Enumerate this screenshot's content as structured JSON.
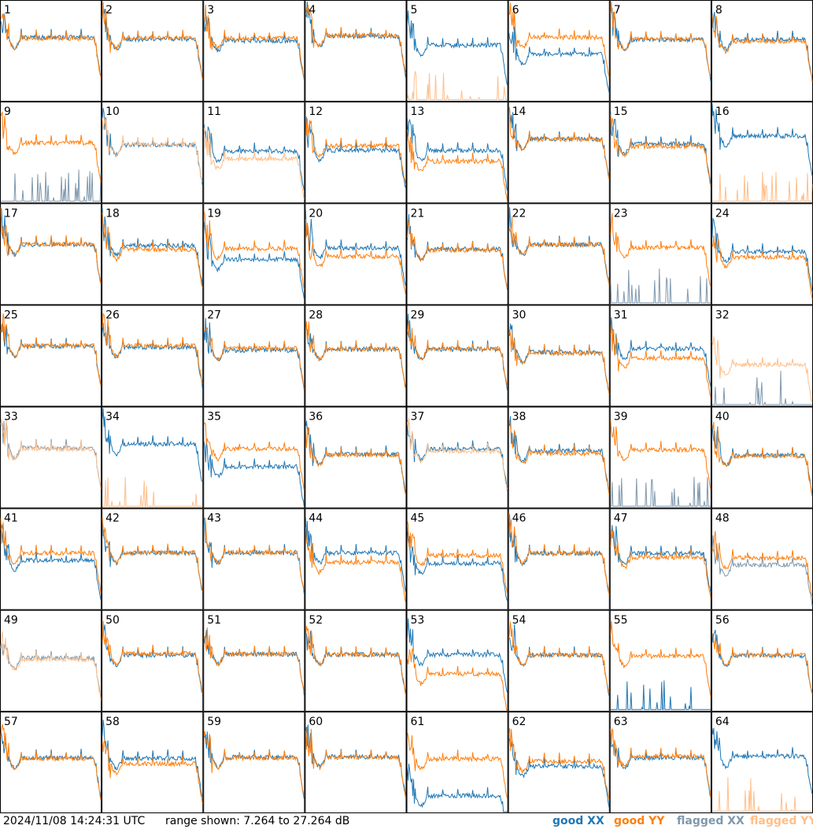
{
  "footer": {
    "timestamp": "2024/11/08 14:24:31 UTC",
    "range": "range shown: 7.264 to 27.264 dB"
  },
  "legend": [
    {
      "label": "good XX",
      "color": "#1f77b4"
    },
    {
      "label": "good YY",
      "color": "#ff7f0e"
    },
    {
      "label": "flagged XX",
      "color": "#7f98ad"
    },
    {
      "label": "flagged YY",
      "color": "#ffbf8a"
    }
  ],
  "chart_data": {
    "type": "line",
    "grid": "8x8 small multiples",
    "ylim": [
      7.264,
      27.264
    ],
    "units": "dB",
    "panels": [
      {
        "label": "1",
        "xx": "good",
        "yy": "good",
        "xx_level": 20.0,
        "yy_level": 19.8
      },
      {
        "label": "2",
        "xx": "good",
        "yy": "good",
        "xx_level": 19.6,
        "yy_level": 19.9
      },
      {
        "label": "3",
        "xx": "good",
        "yy": "good",
        "xx_level": 19.3,
        "yy_level": 19.8
      },
      {
        "label": "4",
        "xx": "good",
        "yy": "good",
        "xx_level": 20.2,
        "yy_level": 20.4
      },
      {
        "label": "5",
        "xx": "good",
        "yy": "flagged",
        "xx_level": 18.4,
        "yy_level": 7.5
      },
      {
        "label": "6",
        "xx": "good",
        "yy": "good",
        "xx_level": 16.6,
        "yy_level": 20.0
      },
      {
        "label": "7",
        "xx": "good",
        "yy": "good",
        "xx_level": 19.5,
        "yy_level": 19.6
      },
      {
        "label": "8",
        "xx": "good",
        "yy": "good",
        "xx_level": 19.6,
        "yy_level": 19.2
      },
      {
        "label": "9",
        "xx": "flagged",
        "yy": "good",
        "xx_level": 8.5,
        "yy_level": 19.2
      },
      {
        "label": "10",
        "xx": "good",
        "yy": "flagged",
        "xx_level": 18.8,
        "yy_level": 18.9
      },
      {
        "label": "11",
        "xx": "good",
        "yy": "flagged",
        "xx_level": 17.5,
        "yy_level": 16.0
      },
      {
        "label": "12",
        "xx": "good",
        "yy": "good",
        "xx_level": 17.7,
        "yy_level": 18.6
      },
      {
        "label": "13",
        "xx": "good",
        "yy": "good",
        "xx_level": 17.7,
        "yy_level": 15.5
      },
      {
        "label": "14",
        "xx": "good",
        "yy": "good",
        "xx_level": 20.0,
        "yy_level": 19.9
      },
      {
        "label": "15",
        "xx": "good",
        "yy": "good",
        "xx_level": 19.0,
        "yy_level": 18.5
      },
      {
        "label": "16",
        "xx": "good",
        "yy": "flagged",
        "xx_level": 20.6,
        "yy_level": 7.4
      },
      {
        "label": "17",
        "xx": "good",
        "yy": "good",
        "xx_level": 19.2,
        "yy_level": 19.3
      },
      {
        "label": "18",
        "xx": "good",
        "yy": "good",
        "xx_level": 19.0,
        "yy_level": 18.2
      },
      {
        "label": "19",
        "xx": "good",
        "yy": "good",
        "xx_level": 16.2,
        "yy_level": 18.4
      },
      {
        "label": "20",
        "xx": "good",
        "yy": "good",
        "xx_level": 18.5,
        "yy_level": 16.8
      },
      {
        "label": "21",
        "xx": "good",
        "yy": "good",
        "xx_level": 18.3,
        "yy_level": 18.1
      },
      {
        "label": "22",
        "xx": "good",
        "yy": "good",
        "xx_level": 19.2,
        "yy_level": 19.2
      },
      {
        "label": "23",
        "xx": "flagged",
        "yy": "good",
        "xx_level": 8.0,
        "yy_level": 18.6
      },
      {
        "label": "24",
        "xx": "good",
        "yy": "good",
        "xx_level": 17.8,
        "yy_level": 16.6
      },
      {
        "label": "25",
        "xx": "good",
        "yy": "good",
        "xx_level": 19.2,
        "yy_level": 19.3
      },
      {
        "label": "26",
        "xx": "good",
        "yy": "good",
        "xx_level": 19.0,
        "yy_level": 19.3
      },
      {
        "label": "27",
        "xx": "good",
        "yy": "good",
        "xx_level": 18.4,
        "yy_level": 18.8
      },
      {
        "label": "28",
        "xx": "good",
        "yy": "good",
        "xx_level": 18.6,
        "yy_level": 18.6
      },
      {
        "label": "29",
        "xx": "good",
        "yy": "good",
        "xx_level": 18.6,
        "yy_level": 18.7
      },
      {
        "label": "30",
        "xx": "good",
        "yy": "good",
        "xx_level": 18.0,
        "yy_level": 17.8
      },
      {
        "label": "31",
        "xx": "good",
        "yy": "good",
        "xx_level": 18.7,
        "yy_level": 16.8
      },
      {
        "label": "32",
        "xx": "flagged",
        "yy": "flagged",
        "xx_level": 7.6,
        "yy_level": 15.5
      },
      {
        "label": "33",
        "xx": "flagged",
        "yy": "flagged",
        "xx_level": 19.2,
        "yy_level": 19.0
      },
      {
        "label": "34",
        "xx": "good",
        "yy": "flagged",
        "xx_level": 20.0,
        "yy_level": 7.6
      },
      {
        "label": "35",
        "xx": "good",
        "yy": "good",
        "xx_level": 15.4,
        "yy_level": 19.0
      },
      {
        "label": "36",
        "xx": "good",
        "yy": "good",
        "xx_level": 17.9,
        "yy_level": 17.8
      },
      {
        "label": "37",
        "xx": "good",
        "yy": "flagged",
        "xx_level": 18.9,
        "yy_level": 18.5
      },
      {
        "label": "38",
        "xx": "good",
        "yy": "good",
        "xx_level": 18.6,
        "yy_level": 18.1
      },
      {
        "label": "39",
        "xx": "flagged",
        "yy": "good",
        "xx_level": 7.6,
        "yy_level": 18.8
      },
      {
        "label": "40",
        "xx": "good",
        "yy": "good",
        "xx_level": 17.7,
        "yy_level": 17.5
      },
      {
        "label": "41",
        "xx": "good",
        "yy": "good",
        "xx_level": 17.0,
        "yy_level": 18.5
      },
      {
        "label": "42",
        "xx": "good",
        "yy": "good",
        "xx_level": 18.5,
        "yy_level": 18.6
      },
      {
        "label": "43",
        "xx": "good",
        "yy": "good",
        "xx_level": 18.5,
        "yy_level": 18.6
      },
      {
        "label": "44",
        "xx": "good",
        "yy": "good",
        "xx_level": 18.5,
        "yy_level": 16.6
      },
      {
        "label": "45",
        "xx": "good",
        "yy": "good",
        "xx_level": 16.4,
        "yy_level": 18.0
      },
      {
        "label": "46",
        "xx": "good",
        "yy": "good",
        "xx_level": 18.4,
        "yy_level": 18.5
      },
      {
        "label": "47",
        "xx": "good",
        "yy": "good",
        "xx_level": 18.4,
        "yy_level": 17.6
      },
      {
        "label": "48",
        "xx": "flagged",
        "yy": "good",
        "xx_level": 16.1,
        "yy_level": 17.5
      },
      {
        "label": "49",
        "xx": "flagged",
        "yy": "flagged",
        "xx_level": 17.8,
        "yy_level": 17.5
      },
      {
        "label": "50",
        "xx": "good",
        "yy": "good",
        "xx_level": 18.4,
        "yy_level": 18.7
      },
      {
        "label": "51",
        "xx": "good",
        "yy": "good",
        "xx_level": 18.6,
        "yy_level": 18.6
      },
      {
        "label": "52",
        "xx": "good",
        "yy": "good",
        "xx_level": 18.5,
        "yy_level": 18.5
      },
      {
        "label": "53",
        "xx": "good",
        "yy": "good",
        "xx_level": 18.5,
        "yy_level": 14.6
      },
      {
        "label": "54",
        "xx": "good",
        "yy": "good",
        "xx_level": 18.4,
        "yy_level": 18.4
      },
      {
        "label": "55",
        "xx": "good",
        "yy": "good",
        "xx_level": 8.5,
        "yy_level": 18.2
      },
      {
        "label": "56",
        "xx": "good",
        "yy": "good",
        "xx_level": 18.3,
        "yy_level": 18.4
      },
      {
        "label": "57",
        "xx": "good",
        "yy": "good",
        "xx_level": 18.2,
        "yy_level": 18.0
      },
      {
        "label": "58",
        "xx": "good",
        "yy": "good",
        "xx_level": 18.1,
        "yy_level": 17.0
      },
      {
        "label": "59",
        "xx": "good",
        "yy": "good",
        "xx_level": 18.3,
        "yy_level": 18.2
      },
      {
        "label": "60",
        "xx": "good",
        "yy": "good",
        "xx_level": 18.4,
        "yy_level": 18.3
      },
      {
        "label": "61",
        "xx": "good",
        "yy": "good",
        "xx_level": 10.5,
        "yy_level": 18.0
      },
      {
        "label": "62",
        "xx": "good",
        "yy": "good",
        "xx_level": 16.5,
        "yy_level": 17.5
      },
      {
        "label": "63",
        "xx": "good",
        "yy": "good",
        "xx_level": 18.2,
        "yy_level": 18.5
      },
      {
        "label": "64",
        "xx": "good",
        "yy": "flagged",
        "xx_level": 18.5,
        "yy_level": 7.4
      }
    ]
  }
}
